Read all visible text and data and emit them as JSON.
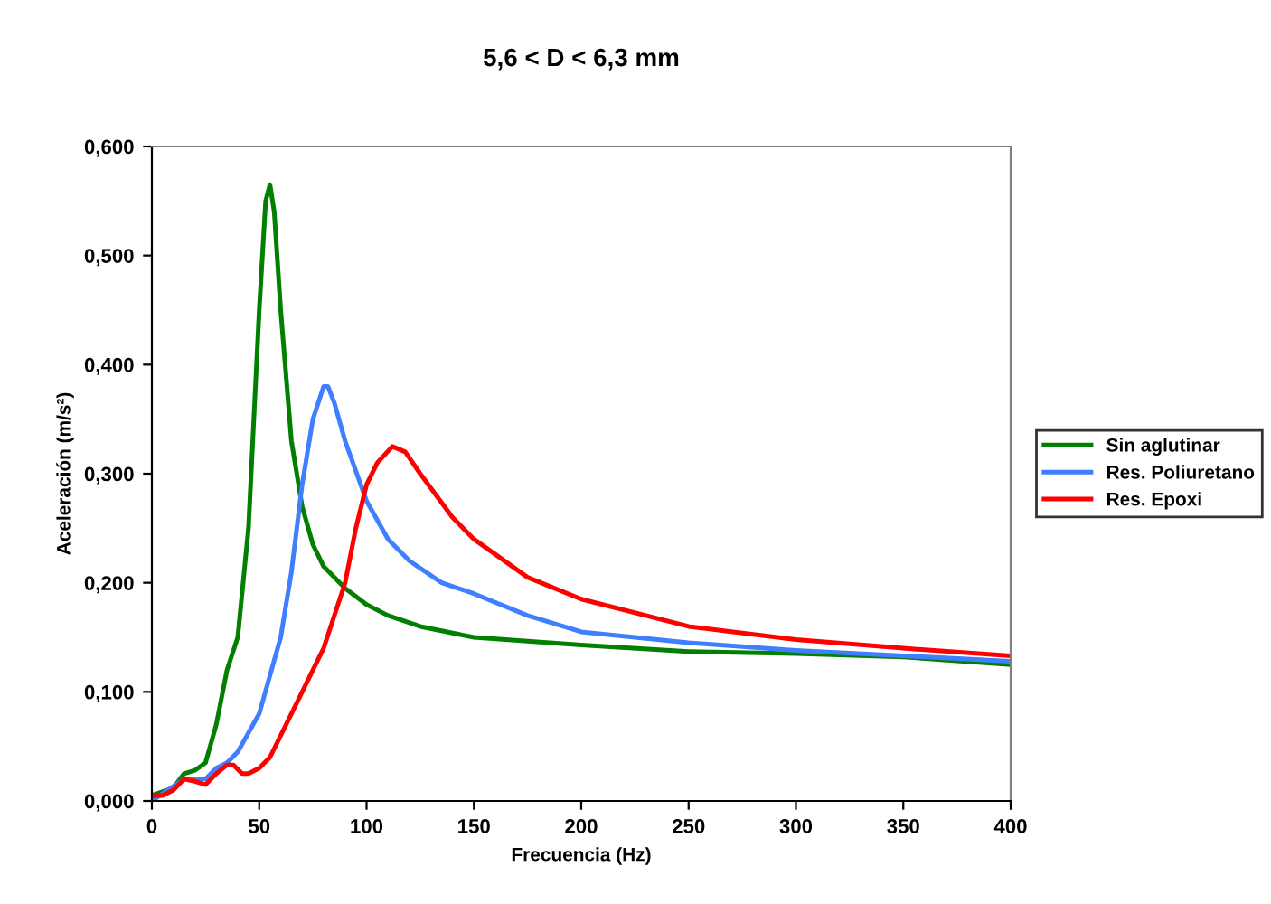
{
  "chart_data": {
    "type": "line",
    "title": "5,6 < D < 6,3 mm",
    "xlabel": "Frecuencia (Hz)",
    "ylabel": "Aceleración (m/s²)",
    "xlim": [
      0,
      400
    ],
    "xticks": [
      0,
      50,
      100,
      150,
      200,
      250,
      300,
      350,
      400
    ],
    "ylim": [
      0,
      0.6
    ],
    "yticks": [
      {
        "value": 0,
        "label": "0,000"
      },
      {
        "value": 0.1,
        "label": "0,100"
      },
      {
        "value": 0.2,
        "label": "0,200"
      },
      {
        "value": 0.3,
        "label": "0,300"
      },
      {
        "value": 0.4,
        "label": "0,400"
      },
      {
        "value": 0.5,
        "label": "0,500"
      },
      {
        "value": 0.6,
        "label": "0,600"
      }
    ],
    "grid": false,
    "legend": "right",
    "marker": "none",
    "line_style": "solid",
    "series": [
      {
        "name": "Sin aglutinar",
        "color": "#007f00",
        "x": [
          0,
          10,
          15,
          20,
          25,
          30,
          35,
          40,
          45,
          50,
          53,
          55,
          57,
          60,
          65,
          70,
          75,
          80,
          90,
          100,
          110,
          125,
          150,
          200,
          250,
          300,
          350,
          400
        ],
        "values": [
          0.005,
          0.012,
          0.025,
          0.028,
          0.035,
          0.07,
          0.12,
          0.15,
          0.25,
          0.45,
          0.55,
          0.565,
          0.54,
          0.45,
          0.33,
          0.27,
          0.235,
          0.215,
          0.195,
          0.18,
          0.17,
          0.16,
          0.15,
          0.143,
          0.137,
          0.135,
          0.132,
          0.125
        ]
      },
      {
        "name": "Res. Poliuretano",
        "color": "#3f7fff",
        "x": [
          0,
          15,
          25,
          30,
          35,
          40,
          50,
          60,
          65,
          70,
          75,
          80,
          82,
          85,
          90,
          100,
          110,
          120,
          135,
          150,
          175,
          200,
          250,
          300,
          350,
          400
        ],
        "values": [
          0.0,
          0.02,
          0.02,
          0.03,
          0.035,
          0.045,
          0.08,
          0.15,
          0.21,
          0.29,
          0.35,
          0.38,
          0.38,
          0.365,
          0.33,
          0.275,
          0.24,
          0.22,
          0.2,
          0.19,
          0.17,
          0.155,
          0.145,
          0.138,
          0.133,
          0.128
        ]
      },
      {
        "name": "Res. Epoxi",
        "color": "#ff0000",
        "x": [
          0,
          5,
          10,
          15,
          20,
          25,
          30,
          35,
          38,
          42,
          45,
          50,
          55,
          60,
          70,
          80,
          90,
          95,
          100,
          105,
          112,
          118,
          125,
          140,
          150,
          175,
          200,
          250,
          300,
          350,
          400
        ],
        "values": [
          0.005,
          0.005,
          0.01,
          0.02,
          0.018,
          0.015,
          0.025,
          0.033,
          0.033,
          0.025,
          0.025,
          0.03,
          0.04,
          0.06,
          0.1,
          0.14,
          0.2,
          0.25,
          0.29,
          0.31,
          0.325,
          0.32,
          0.3,
          0.26,
          0.24,
          0.205,
          0.185,
          0.16,
          0.148,
          0.14,
          0.133
        ]
      }
    ]
  }
}
